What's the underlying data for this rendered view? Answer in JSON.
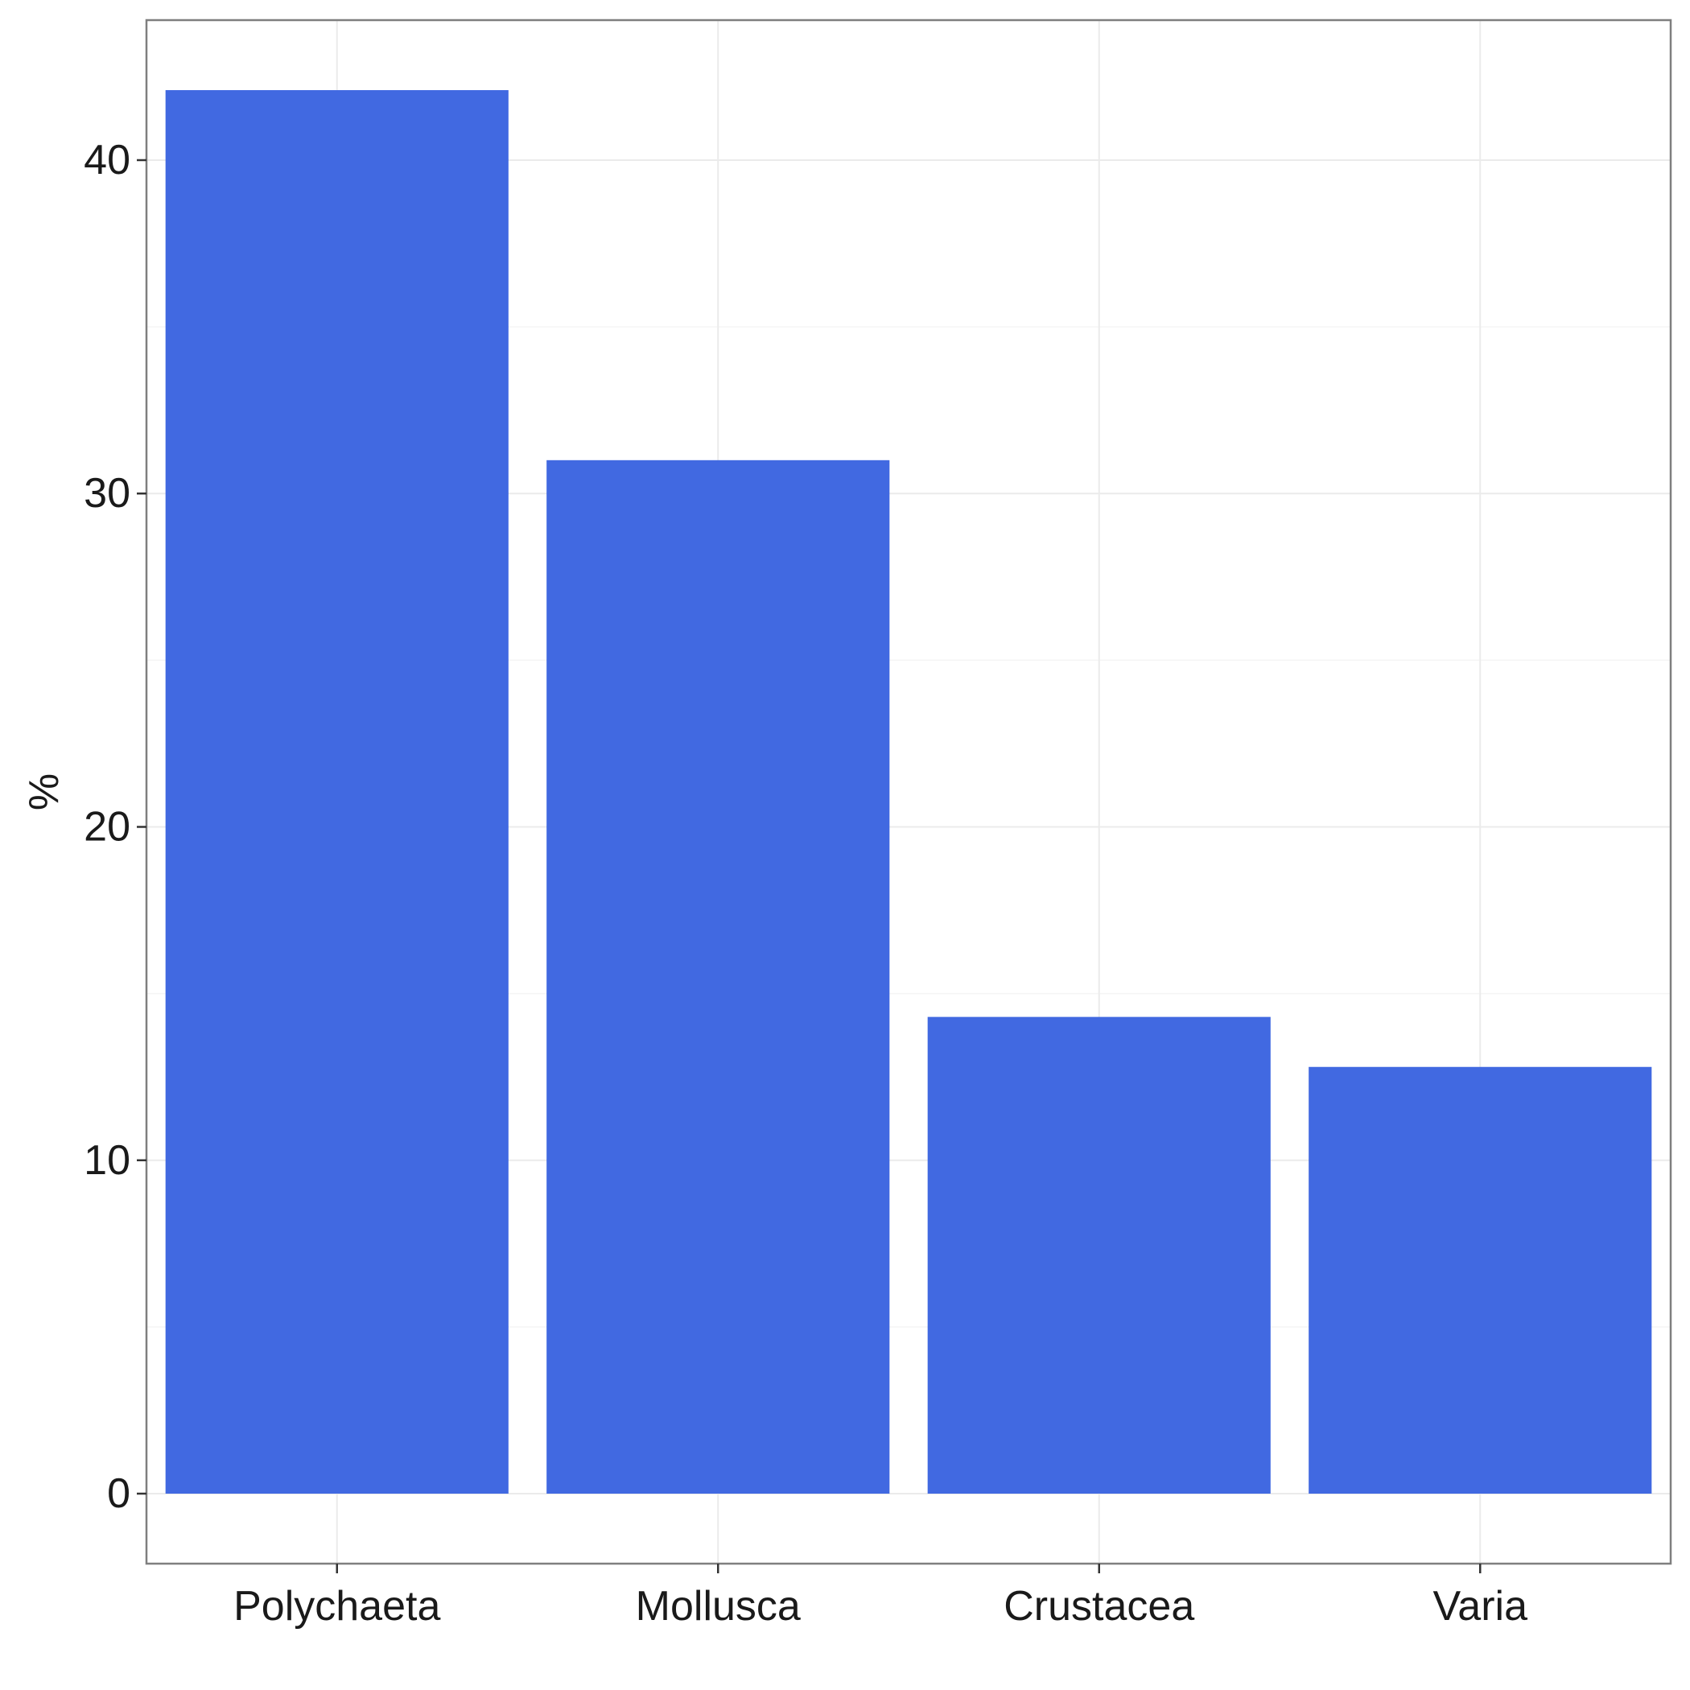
{
  "chart_data": {
    "type": "bar",
    "categories": [
      "Polychaeta",
      "Mollusca",
      "Crustacea",
      "Varia"
    ],
    "values": [
      42.1,
      31.0,
      14.3,
      12.8
    ],
    "title": "",
    "xlabel": "",
    "ylabel": "%",
    "ylim": [
      -2.1,
      44.2
    ],
    "yticks": [
      0,
      10,
      20,
      30,
      40
    ],
    "ytick_labels": [
      "0",
      "10",
      "20",
      "30",
      "40"
    ],
    "grid": true,
    "legend": "none",
    "colors": {
      "bar": "#4169E1",
      "grid_major": "#EBEBEB",
      "grid_minor": "#F5F5F5",
      "panel_border": "#7F7F7F",
      "tick": "#333333",
      "text": "#1A1A1A"
    }
  }
}
